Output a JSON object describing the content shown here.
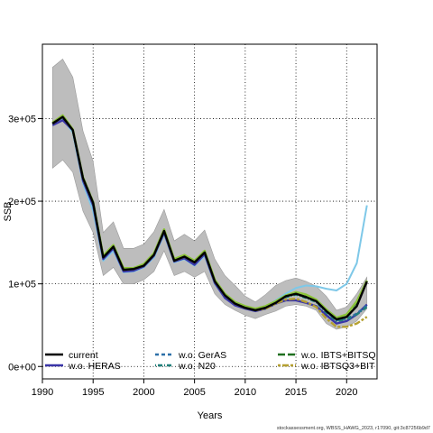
{
  "chart_data": {
    "type": "line",
    "xlabel": "Years",
    "ylabel": "SSB",
    "xlim": [
      1990,
      2023
    ],
    "ylim": [
      -15000,
      390000
    ],
    "x_ticks": [
      1990,
      1995,
      2000,
      2005,
      2010,
      2015,
      2020
    ],
    "y_ticks": [
      0,
      100000,
      200000,
      300000
    ],
    "y_tick_labels": [
      "0e+00",
      "1e+05",
      "2e+05",
      "3e+05"
    ],
    "grid": true,
    "x": [
      1991,
      1992,
      1993,
      1994,
      1995,
      1996,
      1997,
      1998,
      1999,
      2000,
      2001,
      2002,
      2003,
      2004,
      2005,
      2006,
      2007,
      2008,
      2009,
      2010,
      2011,
      2012,
      2013,
      2014,
      2015,
      2016,
      2017,
      2018,
      2019,
      2020,
      2021,
      2022
    ],
    "band": {
      "lower": [
        240000,
        250000,
        235000,
        188000,
        162000,
        110000,
        120000,
        100000,
        100000,
        105000,
        115000,
        140000,
        110000,
        115000,
        108000,
        115000,
        88000,
        75000,
        68000,
        62000,
        58000,
        63000,
        67000,
        73000,
        75000,
        73000,
        68000,
        52000,
        45000,
        48000,
        55000,
        70000
      ],
      "upper": [
        362000,
        372000,
        350000,
        285000,
        248000,
        162000,
        175000,
        143000,
        143000,
        148000,
        163000,
        190000,
        152000,
        160000,
        152000,
        165000,
        130000,
        110000,
        98000,
        85000,
        78000,
        87000,
        98000,
        104000,
        107000,
        103000,
        97000,
        85000,
        68000,
        72000,
        88000,
        108000
      ]
    },
    "series": [
      {
        "name": "current",
        "color": "#000000",
        "dash": "solid",
        "values": [
          294000,
          302000,
          286000,
          228000,
          198000,
          132000,
          145000,
          117000,
          118000,
          122000,
          135000,
          164000,
          128000,
          133000,
          126000,
          138000,
          103000,
          86000,
          76000,
          71000,
          68000,
          71000,
          77000,
          85000,
          88000,
          84000,
          79000,
          67000,
          57000,
          60000,
          73000,
          103000
        ]
      },
      {
        "name": "w.o. HERAS",
        "color": "#3a35a8",
        "dash": "solid",
        "values": [
          292000,
          298000,
          286000,
          225000,
          195000,
          130000,
          143000,
          115000,
          116000,
          121000,
          134000,
          162000,
          127000,
          131000,
          123000,
          136000,
          101000,
          83000,
          74000,
          70000,
          67000,
          70000,
          76000,
          80000,
          80000,
          77000,
          73000,
          62000,
          52000,
          55000,
          63000,
          75000
        ]
      },
      {
        "name": "w.o. GerAS",
        "color": "#2c6fa8",
        "dash": "dashed",
        "values": [
          294000,
          303000,
          286000,
          228000,
          198000,
          133000,
          146000,
          118000,
          118000,
          123000,
          136000,
          165000,
          129000,
          134000,
          127000,
          139000,
          104000,
          87000,
          77000,
          72000,
          69000,
          72000,
          78000,
          85000,
          88000,
          84000,
          79000,
          66000,
          56000,
          58000,
          64000,
          74000
        ]
      },
      {
        "name": "w.o. N20",
        "color": "#1f7f7a",
        "dash": "dotdash",
        "values": [
          294000,
          302000,
          286000,
          228000,
          198000,
          132000,
          145000,
          117000,
          118000,
          122000,
          135000,
          164000,
          128000,
          133000,
          126000,
          138000,
          103000,
          86000,
          76000,
          71000,
          68000,
          71000,
          77000,
          84000,
          87000,
          83000,
          78000,
          65000,
          55000,
          57000,
          63000,
          72000
        ]
      },
      {
        "name": "w.o. IBTS+BITSQ",
        "color": "#1f6f1f",
        "dash": "longdash",
        "values": [
          294000,
          303000,
          286000,
          229000,
          199000,
          133000,
          146000,
          118000,
          119000,
          123000,
          136000,
          165000,
          129000,
          134000,
          127000,
          139000,
          104000,
          87000,
          77000,
          72000,
          69000,
          72000,
          78000,
          85000,
          89000,
          86000,
          80000,
          68000,
          58000,
          62000,
          78000,
          103000
        ]
      },
      {
        "name": "w.o. IBTSQ3+BITSQ",
        "color": "#b5a030",
        "dash": "twodash",
        "values": [
          294000,
          302000,
          286000,
          228000,
          198000,
          133000,
          145000,
          117000,
          118000,
          122000,
          135000,
          164000,
          128000,
          133000,
          126000,
          138000,
          103000,
          86000,
          76000,
          71000,
          68000,
          70000,
          76000,
          81000,
          82000,
          78000,
          72000,
          58000,
          48000,
          48000,
          52000,
          60000
        ]
      },
      {
        "name": "",
        "color": "#7ec8e8",
        "dash": "solid",
        "values": [
          293000,
          300000,
          283000,
          222000,
          188000,
          128000,
          140000,
          114000,
          115000,
          120000,
          132000,
          160000,
          126000,
          130000,
          122000,
          134000,
          100000,
          83000,
          74000,
          70000,
          68000,
          72000,
          80000,
          88000,
          95000,
          98000,
          97000,
          94000,
          92000,
          100000,
          125000,
          195000
        ]
      },
      {
        "name": "",
        "color": "#8cc43a",
        "dash": "solid",
        "values": [
          295000,
          304000,
          287000,
          229000,
          199000,
          134000,
          147000,
          119000,
          119000,
          124000,
          137000,
          166000,
          130000,
          135000,
          128000,
          140000,
          105000,
          88000,
          78000,
          73000,
          70000,
          73000,
          79000,
          86000,
          90000,
          87000,
          81000,
          69000,
          59000,
          63000,
          79000,
          104000
        ]
      }
    ],
    "legend": {
      "placement": "bottom",
      "entries": [
        "current",
        "w.o. HERAS",
        "w.o. GerAS",
        "w.o. N20",
        "w.o. IBTS+BITSQ",
        "w.o. IBTSQ3+BIT"
      ]
    },
    "footer": "stockassessment.org, WBSS_HAWG_2023, r17090, git:3c87256b9d7"
  }
}
